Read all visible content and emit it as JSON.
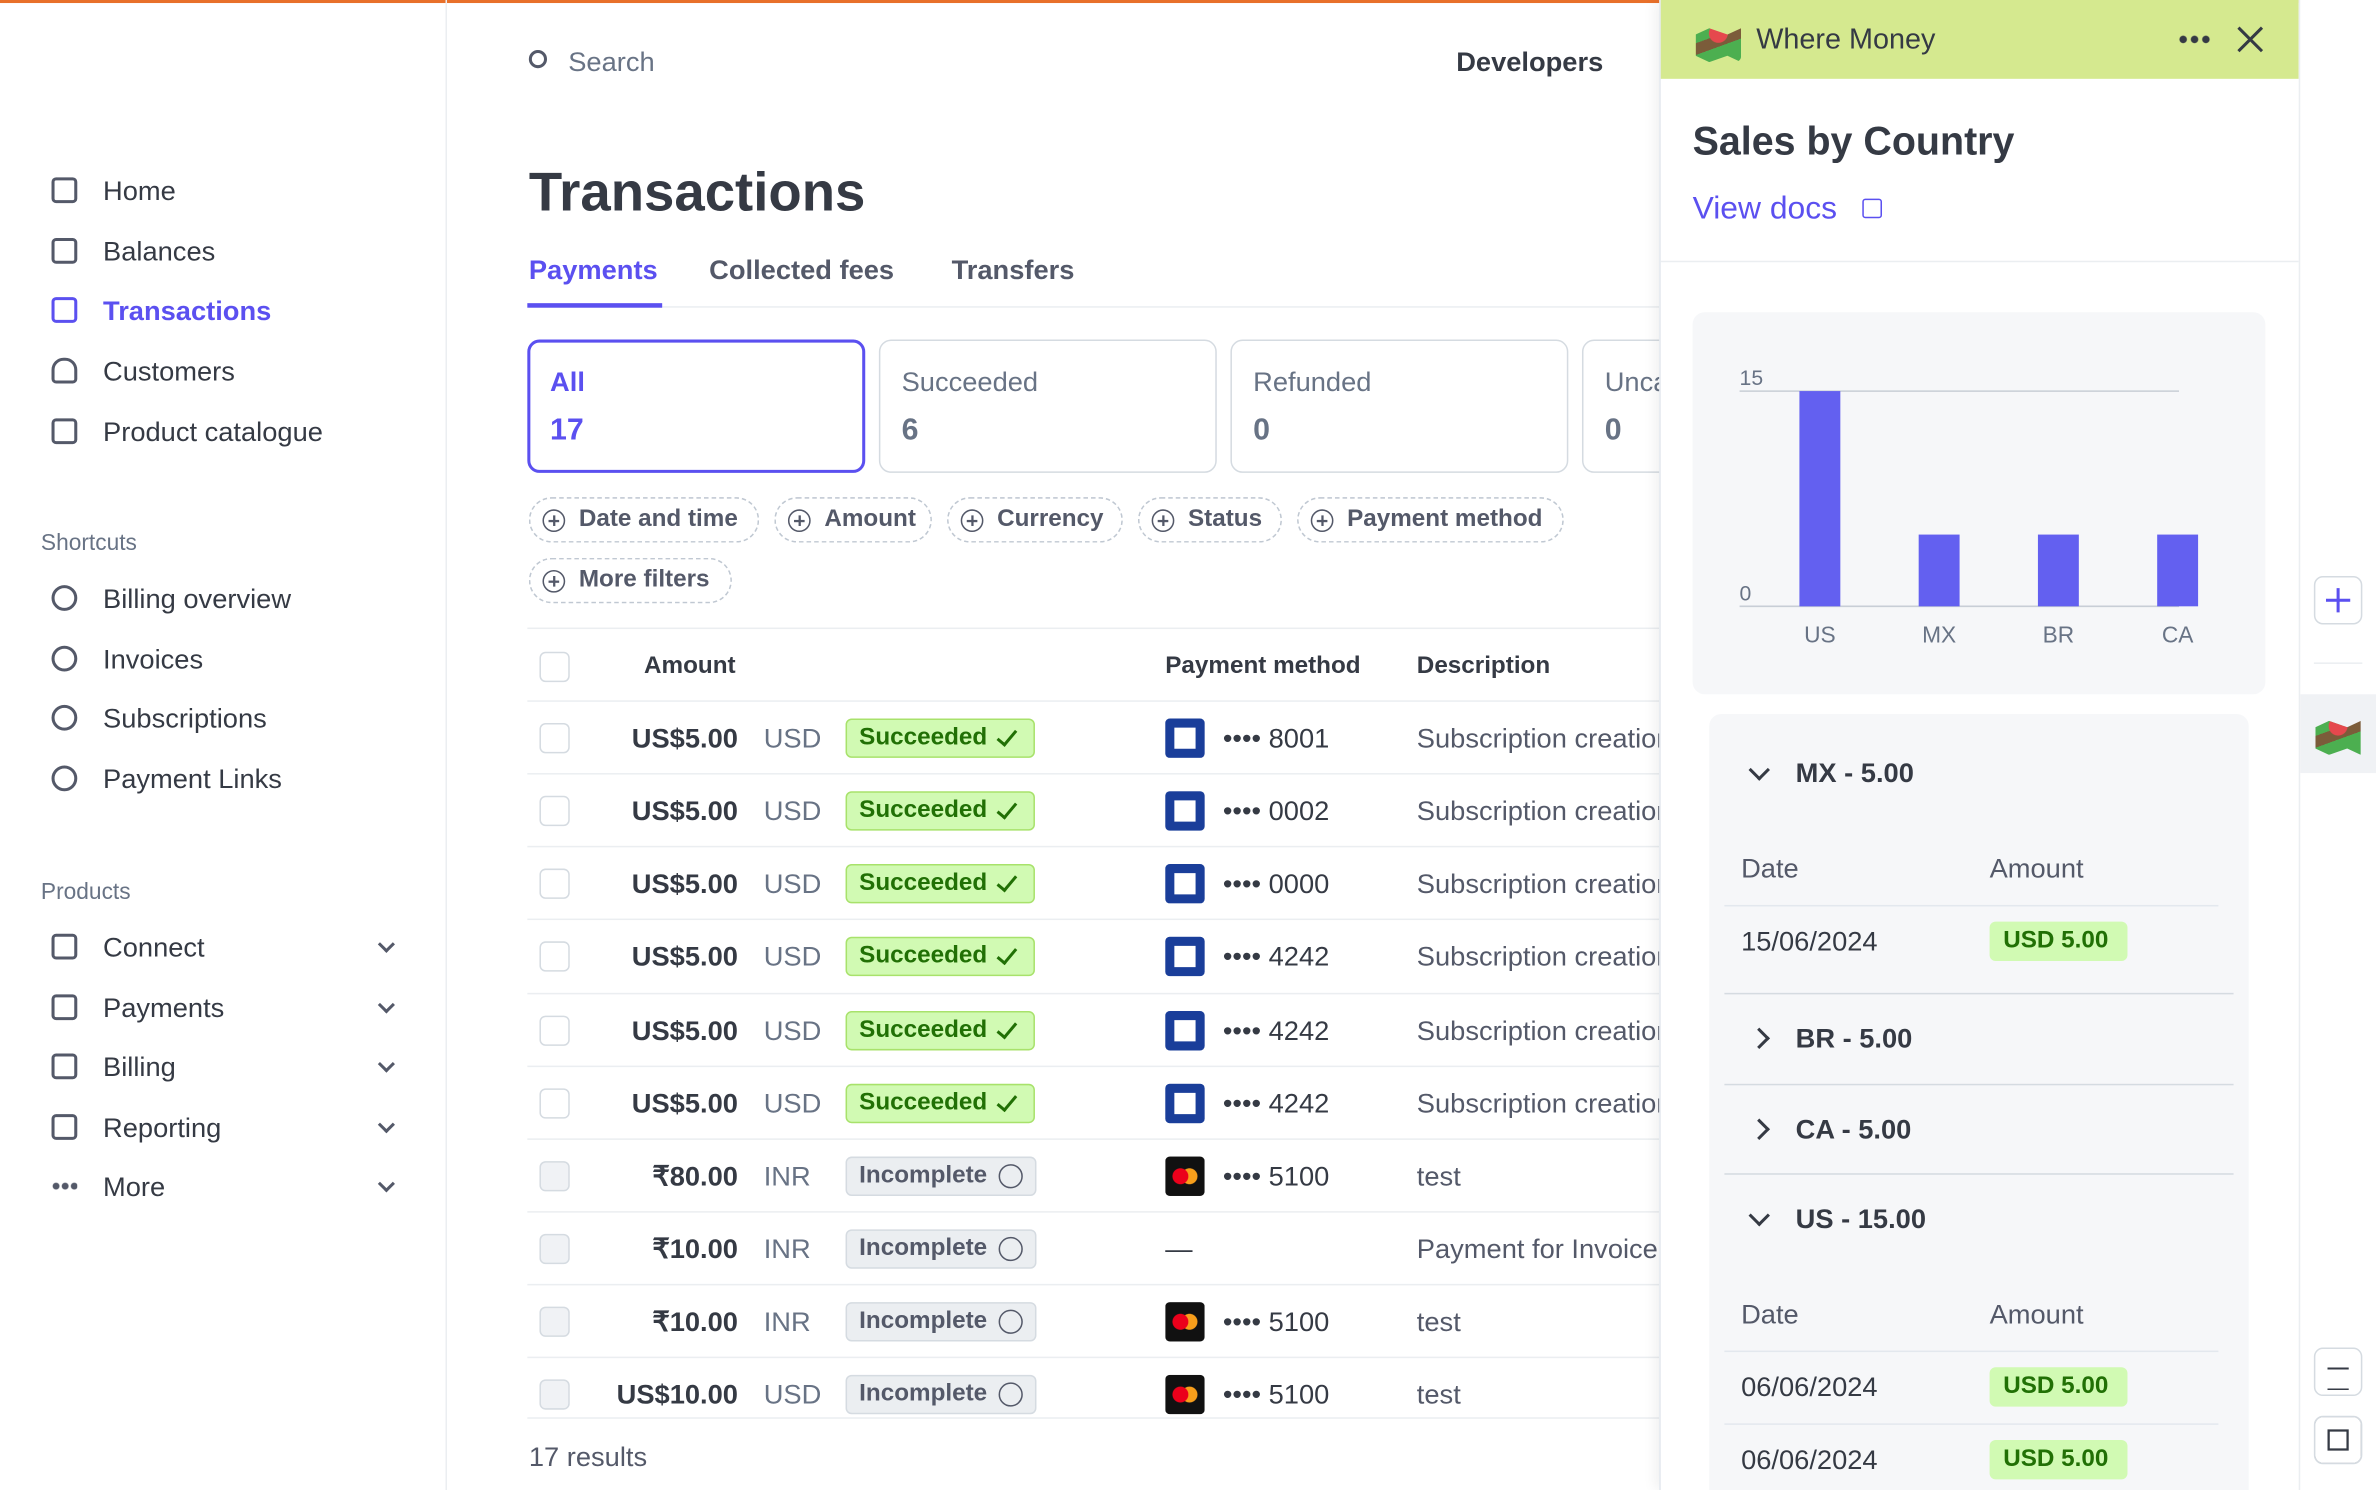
{
  "search": "Search",
  "topnav": {
    "developers": "Developers"
  },
  "sidebar": {
    "main": [
      "Home",
      "Balances",
      "Transactions",
      "Customers",
      "Product catalogue"
    ],
    "shortcuts_title": "Shortcuts",
    "shortcuts": [
      "Billing overview",
      "Invoices",
      "Subscriptions",
      "Payment Links"
    ],
    "products_title": "Products",
    "products": [
      "Connect",
      "Payments",
      "Billing",
      "Reporting",
      "More"
    ]
  },
  "page": {
    "title": "Transactions",
    "tabs": [
      "Payments",
      "Collected fees",
      "Transfers"
    ],
    "status_cards": [
      {
        "label": "All",
        "count": 17
      },
      {
        "label": "Succeeded",
        "count": 6
      },
      {
        "label": "Refunded",
        "count": 0
      },
      {
        "label": "Uncaptured",
        "count": 0
      }
    ],
    "filters": [
      "Date and time",
      "Amount",
      "Currency",
      "Status",
      "Payment method",
      "More filters"
    ],
    "table": {
      "columns": [
        "Amount",
        "Payment method",
        "Description"
      ],
      "rows": [
        {
          "amount": "US$5.00",
          "currency": "USD",
          "status": "Succeeded",
          "card": "visa",
          "method": "•••• 8001",
          "description": "Subscription creation"
        },
        {
          "amount": "US$5.00",
          "currency": "USD",
          "status": "Succeeded",
          "card": "visa",
          "method": "•••• 0002",
          "description": "Subscription creation"
        },
        {
          "amount": "US$5.00",
          "currency": "USD",
          "status": "Succeeded",
          "card": "visa",
          "method": "•••• 0000",
          "description": "Subscription creation"
        },
        {
          "amount": "US$5.00",
          "currency": "USD",
          "status": "Succeeded",
          "card": "visa",
          "method": "•••• 4242",
          "description": "Subscription creation"
        },
        {
          "amount": "US$5.00",
          "currency": "USD",
          "status": "Succeeded",
          "card": "visa",
          "method": "•••• 4242",
          "description": "Subscription creation"
        },
        {
          "amount": "US$5.00",
          "currency": "USD",
          "status": "Succeeded",
          "card": "visa",
          "method": "•••• 4242",
          "description": "Subscription creation"
        },
        {
          "amount": "₹80.00",
          "currency": "INR",
          "status": "Incomplete",
          "card": "mastercard",
          "method": "•••• 5100",
          "description": "test"
        },
        {
          "amount": "₹10.00",
          "currency": "INR",
          "status": "Incomplete",
          "method": "—",
          "description": "Payment for Invoice"
        },
        {
          "amount": "₹10.00",
          "currency": "INR",
          "status": "Incomplete",
          "card": "mastercard",
          "method": "•••• 5100",
          "description": "test"
        },
        {
          "amount": "US$10.00",
          "currency": "USD",
          "status": "Incomplete",
          "card": "mastercard",
          "method": "•••• 5100",
          "description": "test"
        }
      ]
    },
    "results": "17 results"
  },
  "panel": {
    "app": "Where Money",
    "title": "Sales by Country",
    "link": "View docs",
    "chart": {
      "type": "bar",
      "categories": [
        "US",
        "MX",
        "BR",
        "CA"
      ],
      "values": [
        15,
        5,
        5,
        5
      ],
      "color": "#6360f0",
      "ylim": [
        0,
        15
      ],
      "yticks": [
        0,
        15
      ]
    },
    "groups": [
      {
        "label": "MX - 5.00",
        "expanded": true,
        "columns": [
          "Date",
          "Amount"
        ],
        "rows": [
          {
            "date": "15/06/2024",
            "amount": "USD 5.00"
          }
        ]
      },
      {
        "label": "BR - 5.00",
        "expanded": false
      },
      {
        "label": "CA - 5.00",
        "expanded": false
      },
      {
        "label": "US - 15.00",
        "expanded": true,
        "columns": [
          "Date",
          "Amount"
        ],
        "rows": [
          {
            "date": "06/06/2024",
            "amount": "USD 5.00"
          },
          {
            "date": "06/06/2024",
            "amount": "USD 5.00"
          }
        ]
      }
    ]
  }
}
